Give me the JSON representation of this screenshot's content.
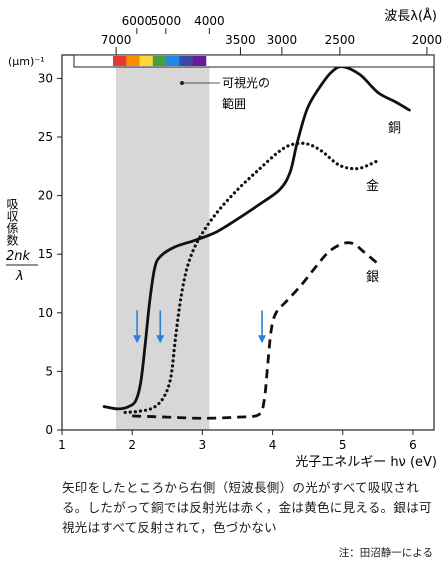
{
  "chart_data": {
    "type": "line",
    "xlabel": "光子エネルギー hν (eV)",
    "ylabel_lines": [
      "吸収係数"
    ],
    "ylabel_formula": {
      "numerator": "2nk",
      "denominator": "λ"
    },
    "yunit": "(μm)⁻¹",
    "xlim": [
      1,
      6.3
    ],
    "ylim": [
      0,
      32
    ],
    "xticks": [
      1,
      2,
      3,
      4,
      5,
      6
    ],
    "yticks": [
      0,
      5,
      10,
      15,
      20,
      25,
      30
    ],
    "top_axis": {
      "label": "波長λ(Å)",
      "upper_ticks": [
        "6000",
        "5000",
        "4000"
      ],
      "lower_ticks": [
        "7000",
        "3500",
        "3000",
        "2500",
        "2000"
      ],
      "upper_tick_values": [
        6000,
        5000,
        4000
      ],
      "lower_tick_values": [
        7000,
        3500,
        3000,
        2500,
        2000
      ]
    },
    "spectrum_band_colors": [
      "#e53935",
      "#fb8c00",
      "#fdd835",
      "#43a047",
      "#1e88e5",
      "#3949ab",
      "#6a1b9a"
    ],
    "visible_region": {
      "x": [
        1.77,
        3.1
      ],
      "label_lines": [
        "可視光の",
        "範囲"
      ],
      "fill": "#d7d7d7"
    },
    "series": [
      {
        "name": "銅",
        "style": "solid",
        "points": [
          [
            1.6,
            2.0
          ],
          [
            1.8,
            1.8
          ],
          [
            1.95,
            2.0
          ],
          [
            2.05,
            2.5
          ],
          [
            2.12,
            4.0
          ],
          [
            2.18,
            7.0
          ],
          [
            2.25,
            11.0
          ],
          [
            2.32,
            13.8
          ],
          [
            2.4,
            14.8
          ],
          [
            2.6,
            15.6
          ],
          [
            2.9,
            16.2
          ],
          [
            3.2,
            16.9
          ],
          [
            3.5,
            18.0
          ],
          [
            3.8,
            19.2
          ],
          [
            4.1,
            20.5
          ],
          [
            4.25,
            22.0
          ],
          [
            4.35,
            24.5
          ],
          [
            4.5,
            27.5
          ],
          [
            4.7,
            29.5
          ],
          [
            4.85,
            30.6
          ],
          [
            5.0,
            31.0
          ],
          [
            5.25,
            30.3
          ],
          [
            5.5,
            28.8
          ],
          [
            5.75,
            28.0
          ],
          [
            5.95,
            27.3
          ]
        ]
      },
      {
        "name": "金",
        "style": "dotted",
        "points": [
          [
            1.9,
            1.5
          ],
          [
            2.1,
            1.6
          ],
          [
            2.3,
            1.9
          ],
          [
            2.45,
            2.8
          ],
          [
            2.55,
            4.5
          ],
          [
            2.62,
            8.0
          ],
          [
            2.7,
            11.5
          ],
          [
            2.8,
            14.2
          ],
          [
            2.95,
            16.3
          ],
          [
            3.2,
            18.5
          ],
          [
            3.5,
            20.5
          ],
          [
            3.8,
            22.2
          ],
          [
            4.1,
            23.8
          ],
          [
            4.3,
            24.4
          ],
          [
            4.5,
            24.4
          ],
          [
            4.7,
            23.8
          ],
          [
            4.95,
            22.6
          ],
          [
            5.2,
            22.3
          ],
          [
            5.4,
            22.7
          ],
          [
            5.5,
            23.0
          ]
        ]
      },
      {
        "name": "銀",
        "style": "dashed",
        "points": [
          [
            2.0,
            1.2
          ],
          [
            2.5,
            1.1
          ],
          [
            3.0,
            1.0
          ],
          [
            3.5,
            1.1
          ],
          [
            3.8,
            1.3
          ],
          [
            3.88,
            2.5
          ],
          [
            3.93,
            5.5
          ],
          [
            3.98,
            8.5
          ],
          [
            4.05,
            10.0
          ],
          [
            4.2,
            11.0
          ],
          [
            4.4,
            12.3
          ],
          [
            4.6,
            13.8
          ],
          [
            4.8,
            15.2
          ],
          [
            5.0,
            15.9
          ],
          [
            5.15,
            15.9
          ],
          [
            5.3,
            15.2
          ],
          [
            5.5,
            14.2
          ]
        ]
      }
    ],
    "arrows_x": [
      2.07,
      2.4,
      3.85
    ],
    "arrow_color": "#2a7fd4",
    "line_color": "#111111"
  },
  "caption": {
    "text": "矢印をしたところから右側（短波長側）の光がすべて吸収される。したがって銅では反射光は赤く，金は黄色に見える。銀は可視光はすべて反射されて，色づかない",
    "note": "注：田沼静一による"
  }
}
